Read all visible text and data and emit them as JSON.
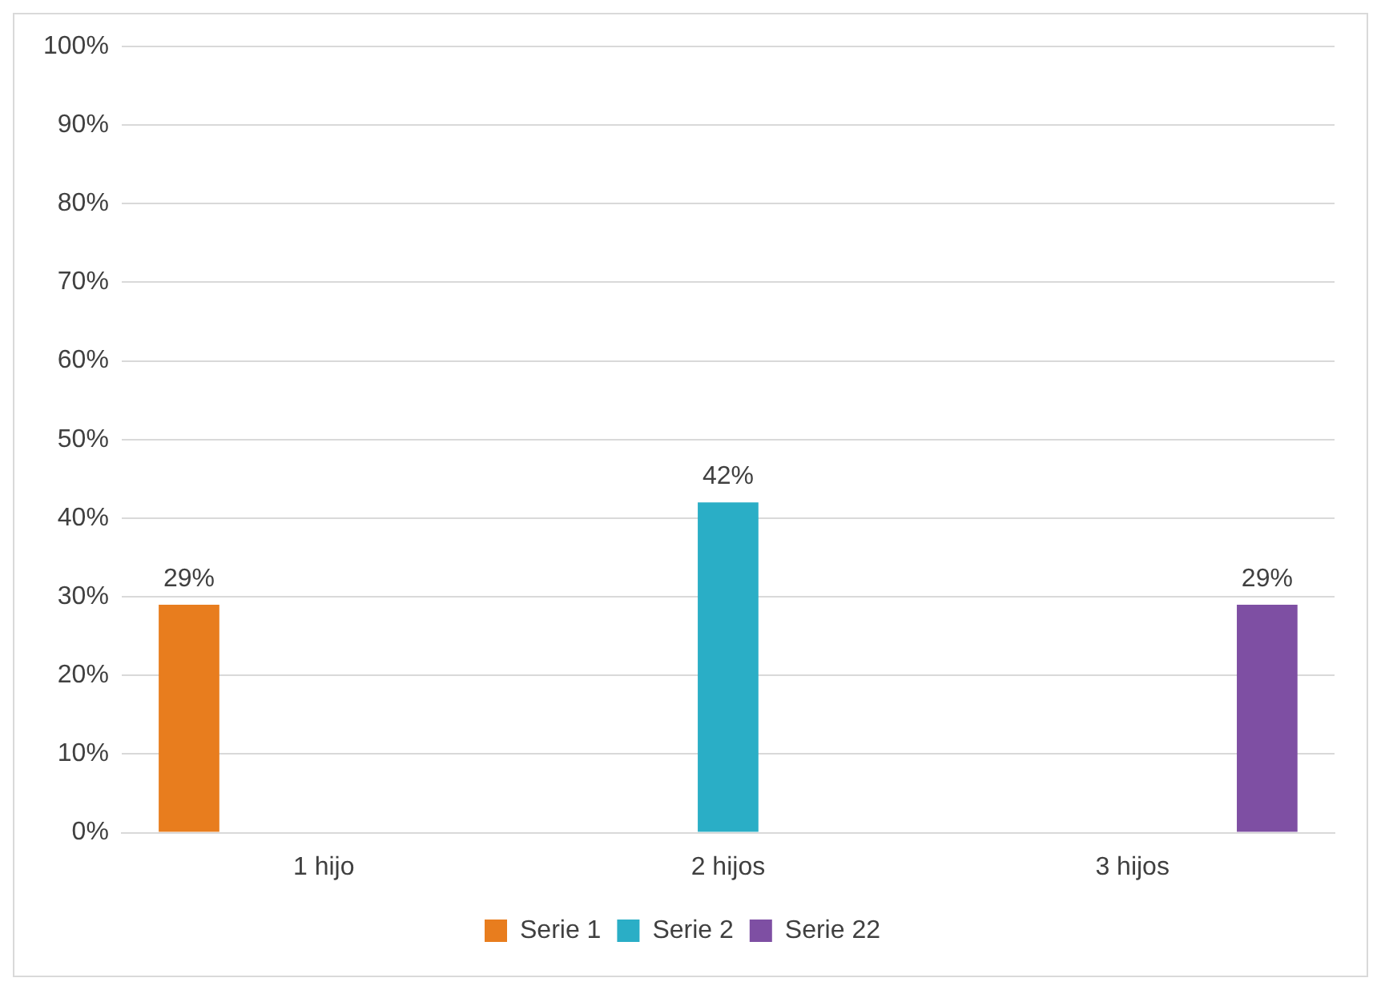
{
  "chart_data": {
    "type": "bar",
    "categories": [
      "1 hijo",
      "2 hijos",
      "3 hijos"
    ],
    "series": [
      {
        "name": "Serie 1",
        "color": "#e87d1e",
        "values": [
          29,
          null,
          null
        ],
        "value_labels": [
          "29%",
          null,
          null
        ]
      },
      {
        "name": "Serie 2",
        "color": "#2aaec6",
        "values": [
          null,
          42,
          null
        ],
        "value_labels": [
          null,
          "42%",
          null
        ]
      },
      {
        "name": "Serie 22",
        "color": "#7e4fa3",
        "values": [
          null,
          null,
          29
        ],
        "value_labels": [
          null,
          null,
          "29%"
        ]
      }
    ],
    "ylim": [
      0,
      100
    ],
    "yticks": [
      {
        "value": 0,
        "label": "0%"
      },
      {
        "value": 10,
        "label": "10%"
      },
      {
        "value": 20,
        "label": "20%"
      },
      {
        "value": 30,
        "label": "30%"
      },
      {
        "value": 40,
        "label": "40%"
      },
      {
        "value": 50,
        "label": "50%"
      },
      {
        "value": 60,
        "label": "60%"
      },
      {
        "value": 70,
        "label": "70%"
      },
      {
        "value": 80,
        "label": "80%"
      },
      {
        "value": 90,
        "label": "90%"
      },
      {
        "value": 100,
        "label": "100%"
      }
    ],
    "grid": "y",
    "legend": "bottom"
  }
}
